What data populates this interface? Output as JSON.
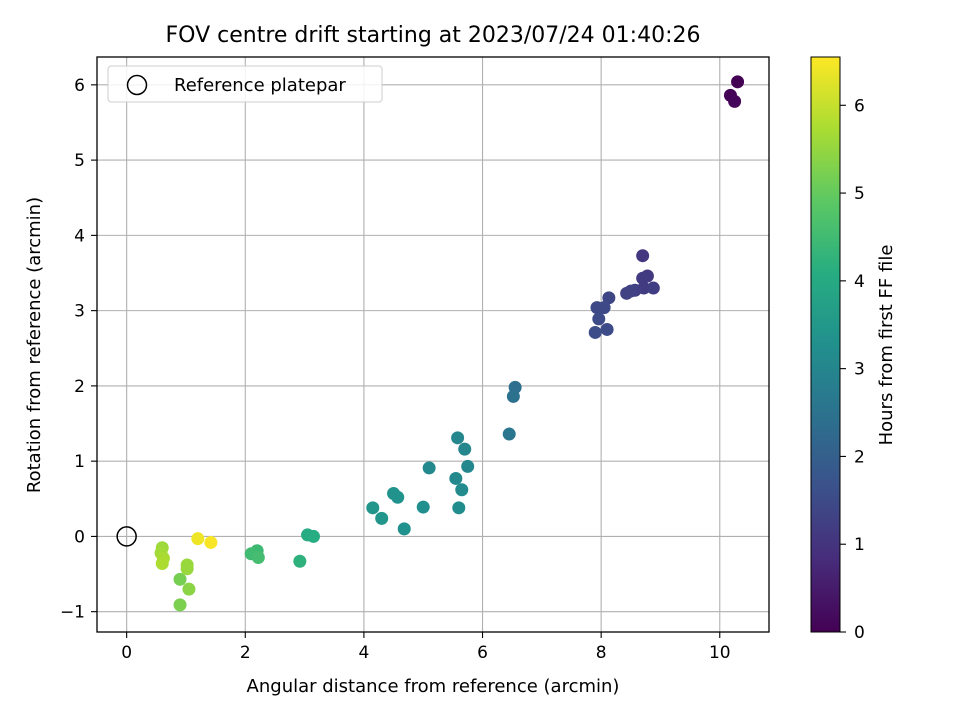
{
  "chart_data": {
    "type": "scatter",
    "title": "FOV centre drift starting at 2023/07/24 01:40:26",
    "xlabel": "Angular distance from reference (arcmin)",
    "ylabel": "Rotation from reference (arcmin)",
    "xlim": [
      -0.5,
      10.83
    ],
    "ylim": [
      -1.27,
      6.37
    ],
    "xticks": [
      0,
      2,
      4,
      6,
      8,
      10
    ],
    "yticks": [
      -1,
      0,
      1,
      2,
      3,
      4,
      5,
      6
    ],
    "grid": true,
    "legend": {
      "position": "top-left",
      "entries": [
        "Reference platepar"
      ]
    },
    "reference_point": {
      "x": 0,
      "y": 0,
      "label": "Reference platepar"
    },
    "colorbar": {
      "label": "Hours from first FF file",
      "range": [
        0,
        6.55
      ],
      "ticks": [
        0,
        1,
        2,
        3,
        4,
        5,
        6
      ],
      "colormap": "viridis"
    },
    "points": [
      {
        "x": 10.3,
        "y": 6.04,
        "h": 0.0
      },
      {
        "x": 10.18,
        "y": 5.86,
        "h": 0.05
      },
      {
        "x": 10.25,
        "y": 5.78,
        "h": 0.1
      },
      {
        "x": 8.7,
        "y": 3.73,
        "h": 1.05
      },
      {
        "x": 8.78,
        "y": 3.46,
        "h": 1.1
      },
      {
        "x": 8.7,
        "y": 3.43,
        "h": 1.15
      },
      {
        "x": 8.72,
        "y": 3.3,
        "h": 1.15
      },
      {
        "x": 8.88,
        "y": 3.3,
        "h": 1.2
      },
      {
        "x": 8.57,
        "y": 3.27,
        "h": 1.25
      },
      {
        "x": 8.5,
        "y": 3.26,
        "h": 1.3
      },
      {
        "x": 8.43,
        "y": 3.23,
        "h": 1.3
      },
      {
        "x": 8.13,
        "y": 3.17,
        "h": 1.4
      },
      {
        "x": 7.93,
        "y": 3.04,
        "h": 1.45
      },
      {
        "x": 8.05,
        "y": 3.04,
        "h": 1.45
      },
      {
        "x": 7.96,
        "y": 2.89,
        "h": 1.5
      },
      {
        "x": 8.1,
        "y": 2.75,
        "h": 1.5
      },
      {
        "x": 7.9,
        "y": 2.71,
        "h": 1.55
      },
      {
        "x": 6.55,
        "y": 1.98,
        "h": 2.4
      },
      {
        "x": 6.52,
        "y": 1.86,
        "h": 2.45
      },
      {
        "x": 6.45,
        "y": 1.36,
        "h": 2.6
      },
      {
        "x": 5.58,
        "y": 1.31,
        "h": 3.0
      },
      {
        "x": 5.7,
        "y": 1.16,
        "h": 3.0
      },
      {
        "x": 5.75,
        "y": 0.93,
        "h": 3.05
      },
      {
        "x": 5.1,
        "y": 0.91,
        "h": 3.1
      },
      {
        "x": 5.55,
        "y": 0.77,
        "h": 3.1
      },
      {
        "x": 5.65,
        "y": 0.62,
        "h": 3.15
      },
      {
        "x": 5.6,
        "y": 0.38,
        "h": 3.2
      },
      {
        "x": 5.0,
        "y": 0.39,
        "h": 3.25
      },
      {
        "x": 4.68,
        "y": 0.1,
        "h": 3.3
      },
      {
        "x": 4.5,
        "y": 0.57,
        "h": 3.35
      },
      {
        "x": 4.57,
        "y": 0.52,
        "h": 3.35
      },
      {
        "x": 4.15,
        "y": 0.38,
        "h": 3.45
      },
      {
        "x": 4.3,
        "y": 0.24,
        "h": 3.45
      },
      {
        "x": 3.05,
        "y": 0.02,
        "h": 4.05
      },
      {
        "x": 3.15,
        "y": 0.0,
        "h": 4.1
      },
      {
        "x": 2.92,
        "y": -0.33,
        "h": 4.2
      },
      {
        "x": 2.2,
        "y": -0.19,
        "h": 4.45
      },
      {
        "x": 2.1,
        "y": -0.23,
        "h": 4.5
      },
      {
        "x": 2.22,
        "y": -0.28,
        "h": 4.55
      },
      {
        "x": 0.9,
        "y": -0.57,
        "h": 5.2
      },
      {
        "x": 0.9,
        "y": -0.91,
        "h": 5.25
      },
      {
        "x": 1.05,
        "y": -0.7,
        "h": 5.4
      },
      {
        "x": 1.02,
        "y": -0.38,
        "h": 5.55
      },
      {
        "x": 1.02,
        "y": -0.43,
        "h": 5.55
      },
      {
        "x": 0.6,
        "y": -0.15,
        "h": 5.6
      },
      {
        "x": 0.58,
        "y": -0.22,
        "h": 5.65
      },
      {
        "x": 0.62,
        "y": -0.29,
        "h": 5.7
      },
      {
        "x": 0.6,
        "y": -0.36,
        "h": 5.75
      },
      {
        "x": 1.2,
        "y": -0.03,
        "h": 6.4
      },
      {
        "x": 1.42,
        "y": -0.08,
        "h": 6.5
      }
    ]
  }
}
